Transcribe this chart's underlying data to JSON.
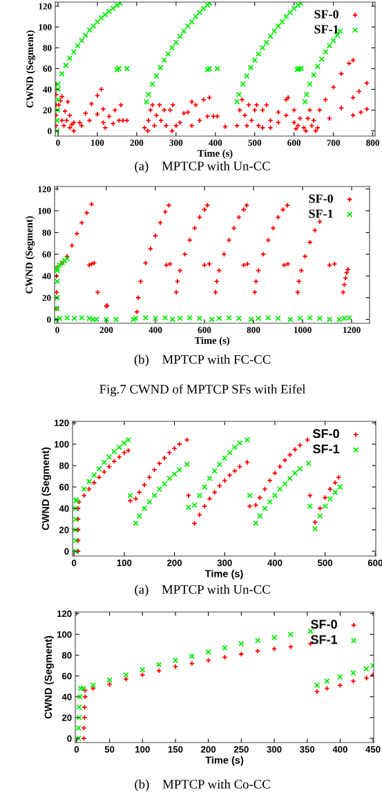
{
  "chart_data": [
    {
      "type": "scatter",
      "xlabel": "Time (s)",
      "ylabel": "CWND (Segment)",
      "xlim": [
        -7,
        806
      ],
      "ylim": [
        -5,
        124
      ],
      "xticks": [
        0,
        100,
        200,
        300,
        400,
        500,
        600,
        700,
        800
      ],
      "yticks": [
        0,
        20,
        40,
        60,
        80,
        100,
        120
      ],
      "legend": "top right",
      "annotations": [
        "(a)    MPTCP with Un-CC"
      ],
      "series": [
        {
          "name": "SF-0",
          "color": "#ff0000",
          "marker": "cross",
          "x": [
            -5,
            -5,
            -5,
            -5,
            -5,
            2,
            6,
            10,
            10,
            18,
            25,
            15,
            22,
            30,
            30,
            35,
            40,
            40,
            55,
            70,
            85,
            100,
            110,
            60,
            80,
            100,
            115,
            115,
            130,
            145,
            160,
            120,
            140,
            155,
            165,
            175,
            220,
            228,
            230,
            235,
            240,
            245,
            250,
            258,
            262,
            270,
            275,
            285,
            292,
            300,
            320,
            340,
            290,
            310,
            330,
            350,
            370,
            385,
            340,
            360,
            380,
            395,
            405,
            425,
            455,
            462,
            468,
            475,
            480,
            485,
            492,
            500,
            505,
            510,
            520,
            530,
            520,
            540,
            560,
            580,
            585,
            540,
            560,
            580,
            600,
            600,
            610,
            615,
            605,
            625,
            630,
            635,
            640,
            645,
            650,
            655,
            665,
            680,
            700,
            720,
            740,
            750,
            660,
            690,
            720,
            750,
            765,
            785,
            750,
            770,
            785
          ],
          "values": [
            5,
            15,
            25,
            35,
            45,
            25,
            29,
            33,
            10,
            19,
            28,
            5,
            10,
            15,
            3,
            6,
            8,
            0,
            8,
            17,
            26,
            34,
            40,
            5,
            10,
            16,
            21,
            8,
            14,
            20,
            25,
            3,
            7,
            10,
            10,
            10,
            3,
            0,
            10,
            20,
            25,
            5,
            15,
            25,
            10,
            20,
            5,
            20,
            25,
            5,
            17,
            28,
            0,
            8,
            18,
            25,
            30,
            32,
            5,
            10,
            14,
            14,
            14,
            4,
            5,
            20,
            30,
            15,
            5,
            25,
            10,
            20,
            25,
            5,
            20,
            25,
            3,
            10,
            18,
            30,
            32,
            3,
            8,
            15,
            20,
            8,
            5,
            12,
            2,
            3,
            0,
            12,
            20,
            5,
            10,
            0,
            20,
            30,
            42,
            55,
            65,
            68,
            3,
            12,
            22,
            32,
            38,
            46,
            15,
            18,
            21
          ]
        },
        {
          "name": "SF-1",
          "color": "#00ee00",
          "marker": "x",
          "x": [
            -3,
            -2,
            -1,
            0,
            0,
            0,
            10,
            20,
            30,
            40,
            50,
            60,
            70,
            80,
            90,
            100,
            110,
            120,
            130,
            140,
            150,
            158,
            150,
            155,
            175,
            225,
            230,
            240,
            250,
            260,
            270,
            280,
            290,
            300,
            310,
            320,
            330,
            340,
            350,
            360,
            370,
            380,
            385,
            380,
            385,
            405,
            455,
            460,
            470,
            480,
            490,
            500,
            510,
            520,
            530,
            540,
            550,
            560,
            570,
            580,
            590,
            600,
            610,
            617,
            608,
            612,
            618,
            628,
            632,
            640,
            650,
            660,
            670,
            680,
            690,
            700,
            710,
            717
          ],
          "values": [
            0,
            10,
            20,
            30,
            40,
            45,
            55,
            63,
            70,
            76,
            82,
            87,
            92,
            97,
            101,
            105,
            109,
            112,
            115,
            118,
            121,
            123,
            59,
            60,
            60,
            28,
            35,
            45,
            53,
            61,
            68,
            74,
            80,
            85,
            91,
            96,
            101,
            105,
            110,
            114,
            118,
            121,
            123,
            59,
            60,
            60,
            28,
            35,
            45,
            53,
            61,
            68,
            74,
            80,
            85,
            91,
            96,
            101,
            105,
            110,
            114,
            118,
            121,
            123,
            59,
            60,
            60,
            28,
            35,
            45,
            54,
            62,
            69,
            76,
            82,
            87,
            92,
            96
          ]
        }
      ]
    },
    {
      "type": "scatter",
      "xlabel": "Time (s)",
      "ylabel": "CWND (Segment)",
      "xlim": [
        -11,
        1273
      ],
      "ylim": [
        -3.5,
        122.3
      ],
      "xticks": [
        0,
        200,
        400,
        600,
        800,
        1000,
        1200
      ],
      "yticks": [
        0,
        20,
        40,
        60,
        80,
        100,
        120
      ],
      "legend": "top right",
      "annotations": [
        "(b)    MPTCP with FC-CC",
        "Fig.7 CWND of MPTCP SFs with Eifel"
      ],
      "series": [
        {
          "name": "SF-0",
          "color": "#ff0000",
          "marker": "cross",
          "x": [
            -3,
            -3,
            -3,
            0,
            20,
            40,
            60,
            80,
            100,
            120,
            140,
            130,
            140,
            150,
            165,
            200,
            203,
            325,
            330,
            340,
            360,
            380,
            400,
            420,
            440,
            455,
            445,
            460,
            485,
            490,
            500,
            520,
            540,
            560,
            580,
            600,
            612,
            600,
            620,
            645,
            650,
            660,
            680,
            700,
            720,
            740,
            760,
            772,
            760,
            775,
            805,
            810,
            820,
            840,
            860,
            880,
            900,
            920,
            938,
            925,
            940,
            980,
            985,
            995,
            1010,
            1030,
            1050,
            1070,
            1110,
            1130,
            1165,
            1170,
            1175,
            1180,
            1185
          ],
          "values": [
            10,
            25,
            40,
            48,
            52,
            58,
            68,
            79,
            89,
            98,
            106,
            50,
            51,
            52,
            25,
            12,
            13,
            7,
            20,
            35,
            52,
            65,
            77,
            89,
            99,
            105,
            50,
            51,
            25,
            35,
            45,
            60,
            73,
            84,
            94,
            101,
            105,
            50,
            51,
            25,
            35,
            45,
            60,
            73,
            84,
            94,
            101,
            105,
            50,
            51,
            25,
            35,
            45,
            60,
            73,
            84,
            94,
            101,
            105,
            50,
            51,
            25,
            35,
            45,
            58,
            71,
            82,
            90,
            50,
            51,
            25,
            32,
            38,
            43,
            46
          ]
        },
        {
          "name": "SF-1",
          "color": "#00ee00",
          "marker": "x",
          "x": [
            -3,
            -2,
            0,
            0,
            0,
            0,
            10,
            20,
            30,
            40,
            10,
            40,
            70,
            100,
            130,
            145,
            160,
            200,
            240,
            310,
            320,
            360,
            400,
            440,
            470,
            500,
            540,
            580,
            630,
            660,
            700,
            740,
            790,
            820,
            860,
            900,
            950,
            990,
            1030,
            1070,
            1110,
            1150,
            1170,
            1190
          ],
          "values": [
            0,
            10,
            20,
            35,
            45,
            47,
            50,
            52,
            54,
            56,
            1,
            1.5,
            1,
            1.5,
            1,
            0,
            0,
            0,
            0,
            0,
            1,
            1.5,
            1,
            1.5,
            0,
            1,
            1.5,
            1,
            0,
            1,
            1.5,
            1,
            0,
            1,
            1.5,
            1,
            0,
            1,
            1.5,
            1,
            0,
            0,
            1,
            1.5
          ]
        }
      ]
    },
    {
      "type": "scatter",
      "xlabel": "Time (s)",
      "ylabel": "CWND (Segment)",
      "xlim": [
        -3,
        601
      ],
      "ylim": [
        -4.5,
        121.3
      ],
      "xticks": [
        0,
        100,
        200,
        300,
        400,
        500,
        600
      ],
      "yticks": [
        0,
        20,
        40,
        60,
        80,
        100,
        120
      ],
      "legend": "top right",
      "annotations": [
        "(a)    MPTCP with Un-CC"
      ],
      "series": [
        {
          "name": "SF-0",
          "color": "#ff0000",
          "marker": "cross",
          "x": [
            8,
            8,
            8,
            8,
            8,
            10,
            20,
            30,
            40,
            50,
            60,
            70,
            80,
            90,
            100,
            108,
            112,
            228,
            350,
            470,
            123,
            130,
            140,
            150,
            160,
            170,
            180,
            190,
            200,
            210,
            225,
            240,
            250,
            260,
            270,
            280,
            290,
            300,
            310,
            320,
            330,
            345,
            362,
            370,
            380,
            390,
            400,
            410,
            420,
            430,
            440,
            450,
            465,
            480,
            490,
            500,
            510,
            520,
            527
          ],
          "values": [
            0,
            10,
            20,
            30,
            40,
            46,
            52,
            58,
            64,
            69,
            74,
            79,
            84,
            88,
            92,
            94,
            47,
            52,
            42,
            52,
            49,
            55,
            62,
            69,
            76,
            82,
            87,
            92,
            96,
            100,
            104,
            26,
            34,
            42,
            49,
            55,
            61,
            66,
            71,
            75,
            79,
            83,
            43,
            50,
            58,
            66,
            73,
            79,
            85,
            90,
            95,
            99,
            104,
            27,
            40,
            50,
            58,
            64,
            69
          ]
        },
        {
          "name": "SF-1",
          "color": "#00ee00",
          "marker": "x",
          "x": [
            3,
            3,
            3,
            3,
            3,
            4,
            5,
            20,
            30,
            40,
            50,
            60,
            70,
            80,
            90,
            100,
            108,
            112,
            228,
            350,
            470,
            123,
            130,
            140,
            150,
            160,
            170,
            180,
            190,
            200,
            210,
            225,
            240,
            250,
            260,
            270,
            280,
            290,
            300,
            310,
            320,
            330,
            345,
            362,
            370,
            380,
            390,
            400,
            410,
            420,
            430,
            440,
            450,
            467,
            480,
            490,
            500,
            510,
            520,
            530
          ],
          "values": [
            0,
            10,
            20,
            30,
            40,
            47,
            48,
            58,
            65,
            71,
            77,
            83,
            88,
            93,
            97,
            101,
            104,
            52,
            41,
            52,
            42,
            26,
            33,
            40,
            46,
            52,
            58,
            63,
            68,
            72,
            76,
            81,
            43,
            52,
            60,
            68,
            75,
            81,
            87,
            92,
            97,
            101,
            104,
            26,
            33,
            40,
            46,
            52,
            58,
            63,
            68,
            73,
            77,
            82,
            21,
            33,
            42,
            49,
            55,
            60
          ]
        }
      ]
    },
    {
      "type": "scatter",
      "xlabel": "Time (s)",
      "ylabel": "CWND (Segment)",
      "xlim": [
        -2,
        451
      ],
      "ylim": [
        -4,
        121.5
      ],
      "xticks": [
        0,
        50,
        100,
        150,
        200,
        250,
        300,
        350,
        400,
        450
      ],
      "yticks": [
        0,
        20,
        40,
        60,
        80,
        100,
        120
      ],
      "legend": "top right",
      "annotations": [
        "(b)    MPTCP with Co-CC"
      ],
      "series": [
        {
          "name": "SF-0",
          "color": "#ff0000",
          "marker": "cross",
          "x": [
            11,
            11,
            12,
            12,
            13,
            13,
            25,
            50,
            75,
            100,
            125,
            150,
            175,
            200,
            225,
            250,
            275,
            300,
            325,
            355,
            365,
            380,
            400,
            420,
            440,
            450
          ],
          "values": [
            0,
            10,
            20,
            30,
            40,
            46,
            48,
            52,
            57,
            61,
            65,
            69,
            72,
            75,
            78,
            81,
            84,
            86,
            88,
            91,
            45,
            48,
            51,
            55,
            58,
            61
          ]
        },
        {
          "name": "SF-1",
          "color": "#00ee00",
          "marker": "x",
          "x": [
            3,
            3,
            4,
            4,
            5,
            6,
            10,
            25,
            50,
            75,
            100,
            125,
            150,
            175,
            200,
            225,
            250,
            275,
            300,
            325,
            355,
            365,
            380,
            400,
            420,
            440,
            450
          ],
          "values": [
            0,
            10,
            20,
            30,
            40,
            48,
            48,
            51,
            56,
            61,
            66,
            71,
            75,
            79,
            83,
            87,
            91,
            94,
            97,
            100,
            103,
            51,
            55,
            59,
            63,
            67,
            70
          ]
        }
      ]
    }
  ]
}
